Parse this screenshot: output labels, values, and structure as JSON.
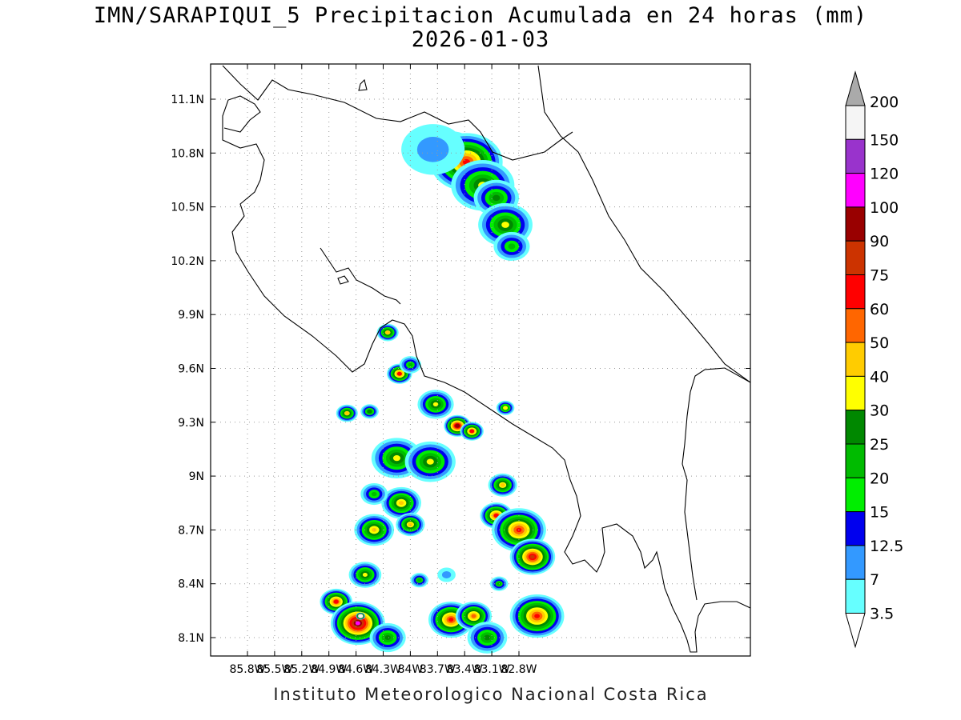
{
  "title_line1": "IMN/SARAPIQUI_5 Precipitacion Acumulada en 24 horas (mm)",
  "title_line2": "2026-01-03",
  "footer": "Instituto Meteorologico Nacional Costa Rica",
  "lat_ticks": [
    "11.1N",
    "10.8N",
    "10.5N",
    "10.2N",
    "9.9N",
    "9.6N",
    "9.3N",
    "9N",
    "8.7N",
    "8.4N",
    "8.1N"
  ],
  "lon_ticks": [
    "85.8W",
    "85.5W",
    "85.2W",
    "84.9W",
    "84.6W",
    "84.3W",
    "84W",
    "83.7W",
    "83.4W",
    "83.1W",
    "82.8W"
  ],
  "colorbar": {
    "labels": [
      "3.5",
      "7",
      "12.5",
      "15",
      "20",
      "25",
      "30",
      "40",
      "50",
      "60",
      "75",
      "90",
      "100",
      "120",
      "150",
      "200"
    ],
    "colors": [
      "#66ffff",
      "#3399ff",
      "#0000ee",
      "#00ee00",
      "#00bb00",
      "#008800",
      "#ffff00",
      "#ffcc00",
      "#ff6600",
      "#ff0000",
      "#cc3300",
      "#990000",
      "#ff00ff",
      "#9933cc",
      "#f5f5f5",
      "#aaaaaa"
    ]
  },
  "precip_cells": [
    {
      "lon": -83.55,
      "lat": 10.8,
      "mm": 30,
      "size": 0.3
    },
    {
      "lon": -83.38,
      "lat": 10.75,
      "mm": 60,
      "size": 0.4
    },
    {
      "lon": -83.2,
      "lat": 10.62,
      "mm": 30,
      "size": 0.35
    },
    {
      "lon": -83.05,
      "lat": 10.55,
      "mm": 25,
      "size": 0.25
    },
    {
      "lon": -82.95,
      "lat": 10.4,
      "mm": 30,
      "size": 0.3
    },
    {
      "lon": -82.88,
      "lat": 10.28,
      "mm": 20,
      "size": 0.2
    },
    {
      "lon": -83.75,
      "lat": 10.82,
      "mm": 7,
      "size": 0.35
    },
    {
      "lon": -84.25,
      "lat": 9.8,
      "mm": 40,
      "size": 0.12
    },
    {
      "lon": -84.12,
      "lat": 9.57,
      "mm": 60,
      "size": 0.14
    },
    {
      "lon": -84.0,
      "lat": 9.62,
      "mm": 20,
      "size": 0.12
    },
    {
      "lon": -84.7,
      "lat": 9.35,
      "mm": 40,
      "size": 0.12
    },
    {
      "lon": -84.45,
      "lat": 9.36,
      "mm": 25,
      "size": 0.1
    },
    {
      "lon": -83.72,
      "lat": 9.4,
      "mm": 30,
      "size": 0.2
    },
    {
      "lon": -83.48,
      "lat": 9.28,
      "mm": 90,
      "size": 0.15
    },
    {
      "lon": -83.32,
      "lat": 9.25,
      "mm": 60,
      "size": 0.13
    },
    {
      "lon": -82.95,
      "lat": 9.38,
      "mm": 30,
      "size": 0.1
    },
    {
      "lon": -84.15,
      "lat": 9.1,
      "mm": 30,
      "size": 0.28
    },
    {
      "lon": -83.78,
      "lat": 9.08,
      "mm": 30,
      "size": 0.28
    },
    {
      "lon": -84.1,
      "lat": 8.85,
      "mm": 40,
      "size": 0.22
    },
    {
      "lon": -84.0,
      "lat": 8.73,
      "mm": 40,
      "size": 0.16
    },
    {
      "lon": -84.4,
      "lat": 8.9,
      "mm": 20,
      "size": 0.15
    },
    {
      "lon": -82.98,
      "lat": 8.95,
      "mm": 40,
      "size": 0.16
    },
    {
      "lon": -83.05,
      "lat": 8.78,
      "mm": 60,
      "size": 0.18
    },
    {
      "lon": -82.8,
      "lat": 8.7,
      "mm": 60,
      "size": 0.3
    },
    {
      "lon": -82.65,
      "lat": 8.55,
      "mm": 75,
      "size": 0.25
    },
    {
      "lon": -82.6,
      "lat": 8.22,
      "mm": 60,
      "size": 0.3
    },
    {
      "lon": -84.4,
      "lat": 8.7,
      "mm": 40,
      "size": 0.22
    },
    {
      "lon": -84.5,
      "lat": 8.45,
      "mm": 30,
      "size": 0.18
    },
    {
      "lon": -84.82,
      "lat": 8.3,
      "mm": 60,
      "size": 0.18
    },
    {
      "lon": -84.58,
      "lat": 8.18,
      "mm": 100,
      "size": 0.3
    },
    {
      "lon": -84.55,
      "lat": 8.22,
      "mm": 150,
      "size": 0.05
    },
    {
      "lon": -84.25,
      "lat": 8.1,
      "mm": 25,
      "size": 0.2
    },
    {
      "lon": -83.55,
      "lat": 8.2,
      "mm": 60,
      "size": 0.25
    },
    {
      "lon": -83.3,
      "lat": 8.22,
      "mm": 50,
      "size": 0.2
    },
    {
      "lon": -83.15,
      "lat": 8.1,
      "mm": 25,
      "size": 0.22
    },
    {
      "lon": -83.9,
      "lat": 8.42,
      "mm": 20,
      "size": 0.1
    },
    {
      "lon": -83.02,
      "lat": 8.4,
      "mm": 20,
      "size": 0.1
    },
    {
      "lon": -83.6,
      "lat": 8.45,
      "mm": 7,
      "size": 0.1
    }
  ]
}
